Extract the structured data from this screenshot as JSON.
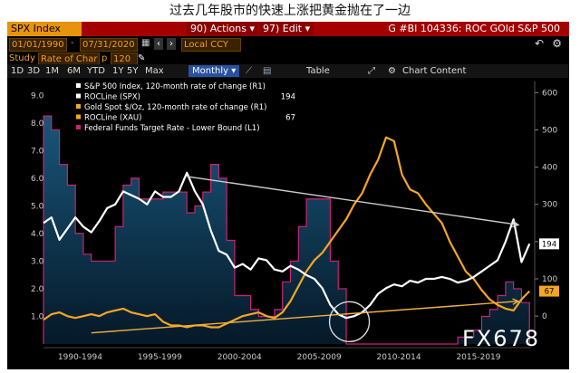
{
  "headline": "过去几年股市的快速上涨把黄金抛在了一边",
  "toolbar": {
    "ticker": "SPX Index",
    "actions_label": "90) Actions ▾",
    "edit_label": "97) Edit ▾",
    "chart_title": "G #BI 104336: ROC GOld S&P 500",
    "start_date": "01/01/1990",
    "end_date": "07/31/2020",
    "currency": "Local CCY",
    "study_label": "Study",
    "study_value": "Rate of Char",
    "p_label": "p",
    "p_value": "120",
    "undo_glyph": "↶",
    "settings_glyph": "⚙",
    "ranges": [
      "1D",
      "3D",
      "1M",
      "6M",
      "YTD",
      "1Y",
      "5Y",
      "Max"
    ],
    "period": "Monthly ▾",
    "table_label": "Table",
    "chart_content_label": "Chart Content",
    "expand_glyph": "⤢"
  },
  "watermark": "FX678",
  "legend_badges": {
    "spx": "194",
    "gold": "67"
  },
  "colors": {
    "spx": "#ffffff",
    "gold": "#f5a623",
    "fed": "#cc2277",
    "area": "#0e3a58",
    "background": "#000000",
    "trend": "#cccccc",
    "trend_gold": "#f0b040"
  },
  "chart_data": {
    "type": "line",
    "x": [
      1990.0,
      1990.5,
      1991.0,
      1991.5,
      1992.0,
      1992.5,
      1993.0,
      1993.5,
      1994.0,
      1994.5,
      1995.0,
      1995.5,
      1996.0,
      1996.5,
      1997.0,
      1997.5,
      1998.0,
      1998.5,
      1999.0,
      1999.5,
      2000.0,
      2000.5,
      2001.0,
      2001.5,
      2002.0,
      2002.5,
      2003.0,
      2003.5,
      2004.0,
      2004.5,
      2005.0,
      2005.5,
      2006.0,
      2006.5,
      2007.0,
      2007.5,
      2008.0,
      2008.5,
      2009.0,
      2009.5,
      2010.0,
      2010.5,
      2011.0,
      2011.5,
      2012.0,
      2012.5,
      2013.0,
      2013.5,
      2014.0,
      2014.5,
      2015.0,
      2015.5,
      2016.0,
      2016.5,
      2017.0,
      2017.5,
      2018.0,
      2018.5,
      2019.0,
      2019.5,
      2020.0,
      2020.5
    ],
    "series": [
      {
        "name": "ROCLine (SPX)",
        "axis": "right",
        "values": [
          250,
          265,
          205,
          235,
          265,
          240,
          225,
          255,
          290,
          300,
          335,
          325,
          315,
          300,
          335,
          320,
          320,
          335,
          385,
          335,
          300,
          230,
          175,
          165,
          130,
          140,
          125,
          155,
          150,
          125,
          120,
          135,
          125,
          110,
          100,
          75,
          30,
          5,
          -5,
          0,
          10,
          30,
          60,
          75,
          85,
          80,
          95,
          90,
          100,
          100,
          105,
          100,
          90,
          95,
          105,
          120,
          135,
          150,
          200,
          260,
          145,
          194
        ]
      },
      {
        "name": "ROCLine (XAU)",
        "axis": "right",
        "values": [
          -10,
          5,
          10,
          0,
          -5,
          0,
          5,
          0,
          10,
          15,
          20,
          10,
          5,
          0,
          5,
          -15,
          -25,
          -25,
          -30,
          -25,
          -25,
          -30,
          -30,
          -20,
          -10,
          0,
          5,
          10,
          0,
          -5,
          10,
          40,
          80,
          120,
          150,
          170,
          200,
          230,
          260,
          300,
          330,
          380,
          420,
          480,
          470,
          380,
          340,
          330,
          300,
          275,
          250,
          200,
          160,
          120,
          100,
          70,
          45,
          30,
          20,
          15,
          45,
          67
        ]
      },
      {
        "name": "Federal Funds Target Rate - Lower Bound (L1)",
        "axis": "left",
        "values": [
          8.25,
          7.75,
          6.5,
          5.75,
          4.0,
          3.25,
          3.0,
          3.0,
          3.0,
          4.25,
          5.75,
          6.0,
          5.25,
          5.25,
          5.25,
          5.5,
          5.5,
          5.5,
          4.75,
          5.0,
          5.5,
          6.5,
          6.0,
          3.75,
          1.75,
          1.75,
          1.25,
          1.0,
          1.0,
          1.25,
          2.25,
          3.0,
          4.25,
          5.25,
          5.25,
          5.25,
          3.0,
          2.0,
          0.0,
          0.0,
          0.0,
          0.0,
          0.0,
          0.0,
          0.0,
          0.0,
          0.0,
          0.0,
          0.0,
          0.0,
          0.0,
          0.0,
          0.25,
          0.25,
          0.5,
          1.0,
          1.25,
          1.75,
          2.25,
          2.0,
          1.5,
          0.0
        ]
      }
    ],
    "legend": [
      {
        "label": "S&P 500 Index, 120-month rate of change (R1)",
        "color": "#ffffff"
      },
      {
        "label": "ROCLine (SPX)",
        "color": "#ffffff",
        "value": "194"
      },
      {
        "label": "Gold Spot $/Oz, 120-month rate of change (R1)",
        "color": "#f5a623"
      },
      {
        "label": "ROCLine (XAU)",
        "color": "#f5a623",
        "value": "67"
      },
      {
        "label": "Federal Funds Target Rate - Lower Bound (L1)",
        "color": "#cc2277"
      }
    ],
    "left_axis": {
      "ticks": [
        "9.0",
        "8.0",
        "7.0",
        "6.0",
        "5.0",
        "4.0",
        "3.0",
        "2.0",
        "1.0"
      ],
      "ylim": [
        0,
        9.5
      ]
    },
    "right_axis": {
      "ticks": [
        "600",
        "500",
        "400",
        "300",
        "200",
        "100",
        "0"
      ],
      "ylim": [
        -75,
        630
      ]
    },
    "x_labels": [
      "1990-1994",
      "1995-1999",
      "2000-2004",
      "2005-2009",
      "2010-2014",
      "2015-2019"
    ],
    "xlim": [
      1990,
      2020.6
    ],
    "trendlines": [
      {
        "name": "spx-decline",
        "from": [
          1999.0,
          375
        ],
        "to": [
          2019.8,
          245
        ]
      },
      {
        "name": "gold-floor",
        "from": [
          1993.0,
          -45
        ],
        "to": [
          2019.8,
          40
        ]
      }
    ],
    "circle_marker": {
      "x": 2009.2,
      "y": -15
    },
    "legend_position": "top-left",
    "grid": false
  }
}
